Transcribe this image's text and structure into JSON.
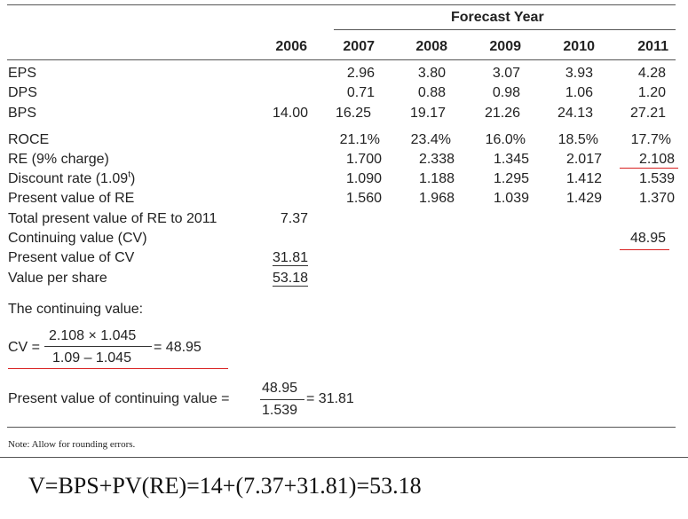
{
  "table": {
    "group_header": "Forecast Year",
    "years": [
      "2006",
      "2007",
      "2008",
      "2009",
      "2010",
      "2011"
    ],
    "rows": [
      {
        "label": "EPS",
        "cells": [
          "",
          "2.96",
          "3.80",
          "3.07",
          "3.93",
          "4.28"
        ]
      },
      {
        "label": "DPS",
        "cells": [
          "",
          "0.71",
          "0.88",
          "0.98",
          "1.06",
          "1.20"
        ]
      },
      {
        "label": "BPS",
        "cells": [
          "14.00",
          "16.25",
          "19.17",
          "21.26",
          "24.13",
          "27.21"
        ]
      },
      {
        "label": "ROCE",
        "cells": [
          "",
          "21.1%",
          "23.4%",
          "16.0%",
          "18.5%",
          "17.7%"
        ]
      },
      {
        "label": "RE (9% charge)",
        "cells": [
          "",
          "1.700",
          "2.338",
          "1.345",
          "2.017",
          "2.108"
        ]
      },
      {
        "label": "Discount rate (1.09",
        "label_sup": "t",
        "label_end": ")",
        "cells": [
          "",
          "1.090",
          "1.188",
          "1.295",
          "1.412",
          "1.539"
        ]
      },
      {
        "label": "Present value of RE",
        "cells": [
          "",
          "1.560",
          "1.968",
          "1.039",
          "1.429",
          "1.370"
        ]
      },
      {
        "label": "Total present value of RE to 2011",
        "cells": [
          "7.37",
          "",
          "",
          "",
          "",
          ""
        ]
      },
      {
        "label": "Continuing value (CV)",
        "cells": [
          "",
          "",
          "",
          "",
          "",
          "48.95"
        ]
      },
      {
        "label": "Present value of CV",
        "cells": [
          "31.81",
          "",
          "",
          "",
          "",
          ""
        ]
      },
      {
        "label": "Value per share",
        "cells": [
          "53.18",
          "",
          "",
          "",
          "",
          ""
        ]
      }
    ]
  },
  "continuing_value_heading": "The continuing value:",
  "cv_formula": {
    "lhs": "CV =",
    "numerator": "2.108 × 1.045",
    "denominator": "1.09 – 1.045",
    "result": "= 48.95"
  },
  "pv_formula": {
    "lhs": "Present value of continuing value =",
    "numerator": "48.95",
    "denominator": "1.539",
    "result": "= 31.81"
  },
  "note": "Note: Allow for rounding errors.",
  "valuation_formula": "V=BPS+PV(RE)=14+(7.37+31.81)=53.18",
  "colors": {
    "annotation_red": "#d82020",
    "rule": "#555555"
  }
}
